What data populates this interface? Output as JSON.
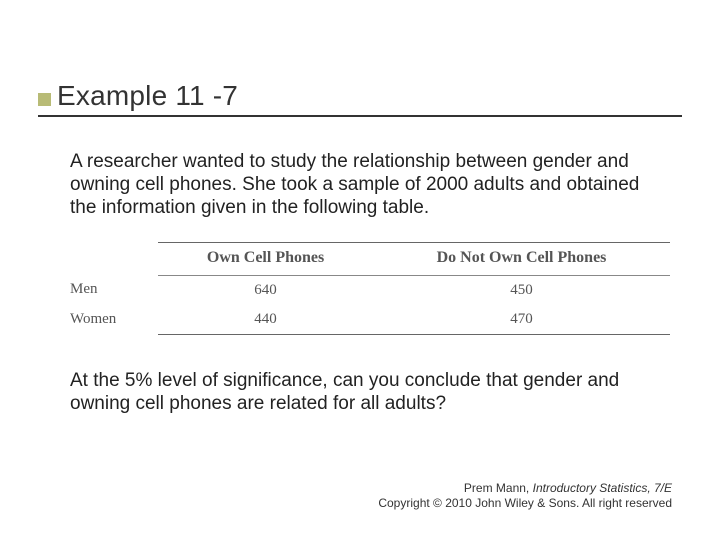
{
  "title": "Example 11 -7",
  "paragraph1": "A researcher wanted to study the relationship between gender and owning cell phones.  She took a sample of 2000 adults and obtained the information given in the following table.",
  "table": {
    "columns": [
      "Own Cell Phones",
      "Do Not Own Cell Phones"
    ],
    "rows": [
      {
        "label": "Men",
        "values": [
          "640",
          "450"
        ]
      },
      {
        "label": "Women",
        "values": [
          "440",
          "470"
        ]
      }
    ],
    "header_fontsize": 16,
    "cell_fontsize": 15,
    "border_color": "#666666",
    "text_color": "#555555"
  },
  "paragraph2": "At the 5% level of significance, can you conclude that gender and owning cell phones are related for all adults?",
  "footer": {
    "line1_pre": "Prem Mann, ",
    "line1_italic": "Introductory Statistics, 7/E",
    "line2": "Copyright © 2010 John Wiley & Sons. All right reserved"
  },
  "colors": {
    "bullet": "#b8bb76",
    "title_text": "#333333",
    "body_text": "#222222",
    "underline": "#333333",
    "background": "#ffffff"
  }
}
